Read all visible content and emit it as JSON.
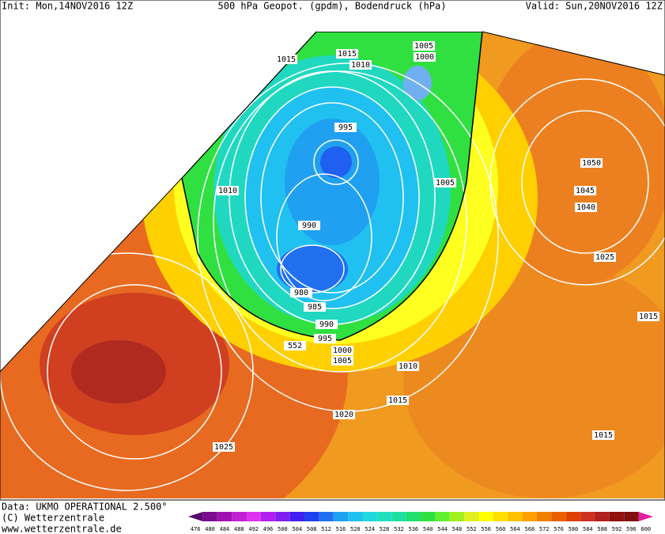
{
  "header": {
    "init": "Init: Mon,14NOV2016 12Z",
    "title": "500 hPa Geopot. (gpdm), Bodendruck (hPa)",
    "valid": "Valid: Sun,20NOV2016 12Z"
  },
  "isobar_labels": [
    "1015",
    "1015",
    "1010",
    "1005",
    "1000",
    "995",
    "1010",
    "1005",
    "990",
    "985",
    "980",
    "990",
    "995",
    "1000",
    "1005",
    "1010",
    "1015",
    "1020",
    "1025",
    "1050",
    "1045",
    "1040",
    "1025",
    "1015",
    "1015",
    "552"
  ],
  "footer": {
    "data": "Data: UKMO OPERATIONAL 2.500°",
    "copyright": "(C) Wetterzentrale",
    "url": "www.wetterzentrale.de"
  },
  "scale": {
    "labels": [
      476,
      480,
      484,
      488,
      492,
      496,
      500,
      504,
      508,
      512,
      516,
      520,
      524,
      528,
      532,
      536,
      540,
      544,
      548,
      552,
      556,
      560,
      564,
      568,
      572,
      576,
      580,
      584,
      588,
      592,
      596,
      600
    ],
    "colors": [
      "#5a0a6e",
      "#7a0a8e",
      "#a010b0",
      "#c020d0",
      "#e030f0",
      "#b020f0",
      "#8020f0",
      "#4020f0",
      "#2040f0",
      "#2070f0",
      "#20a0f0",
      "#20c0f0",
      "#20d8e0",
      "#20e0c0",
      "#20e0a0",
      "#20e070",
      "#30e040",
      "#60f030",
      "#a0f020",
      "#e0f020",
      "#ffff00",
      "#ffe000",
      "#ffc000",
      "#ffa000",
      "#f08000",
      "#e86000",
      "#e04000",
      "#d03020",
      "#b02020",
      "#901010",
      "#801010",
      "#e020a0"
    ]
  }
}
